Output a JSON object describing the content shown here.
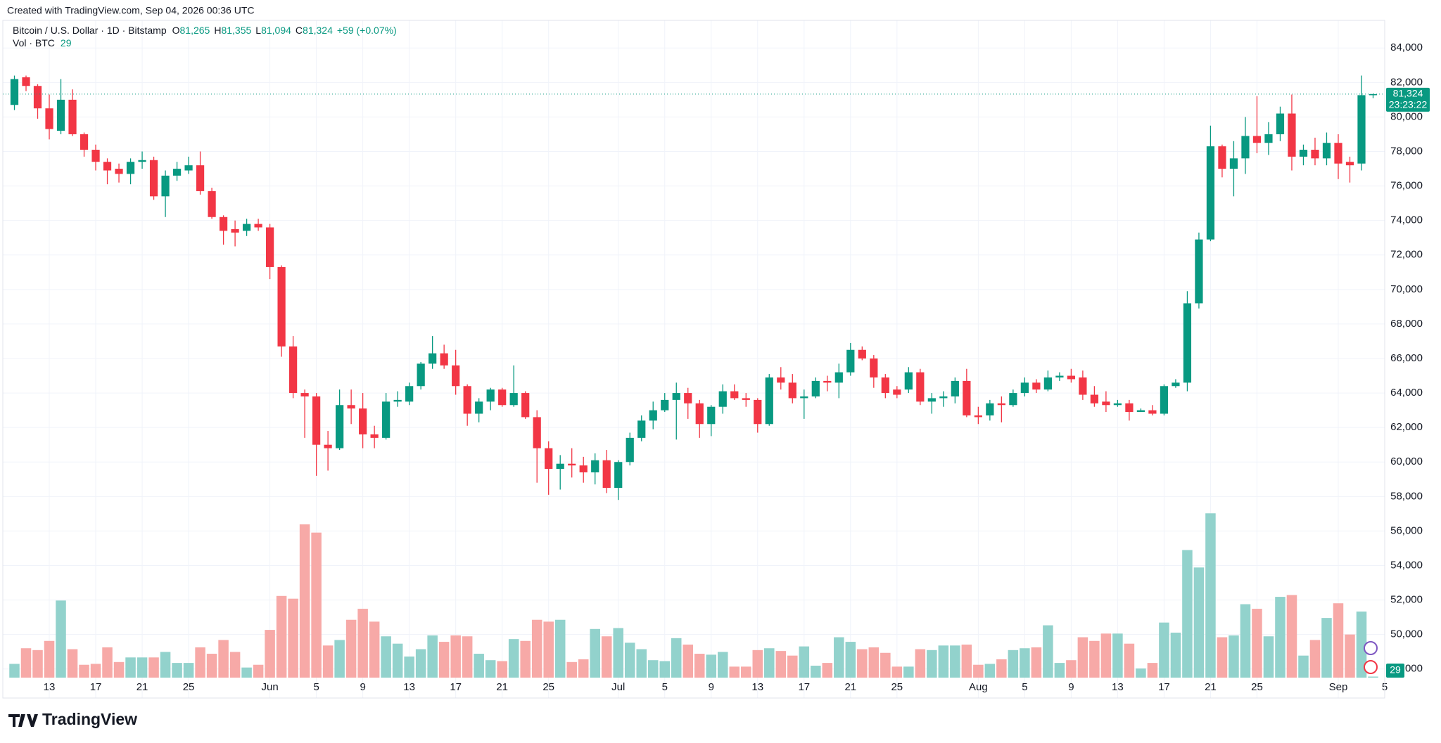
{
  "header": {
    "credit": "Created with TradingView.com, Sep 04, 2026 00:36 UTC"
  },
  "footer": {
    "brand": "TradingView"
  },
  "chart_data": {
    "type": "candlestick",
    "legend": {
      "title": "Bitcoin / U.S. Dollar · 1D · Bitstamp",
      "open_label": "O",
      "open": "81,265",
      "high_label": "H",
      "high": "81,355",
      "low_label": "L",
      "low": "81,094",
      "close_label": "C",
      "close": "81,324",
      "change": "+59 (+0.07%)",
      "volume_title": "Vol · BTC"
    },
    "last_price_label": "81,324",
    "countdown": "23:23:22",
    "up_color": "#089981",
    "down_color": "#f23645",
    "up_volume_color": "#92d2cc",
    "down_volume_color": "#f7a9a7",
    "grid": true,
    "x": [
      "2026-05-10",
      "2026-05-11",
      "2026-05-12",
      "2026-05-13",
      "2026-05-14",
      "2026-05-15",
      "2026-05-16",
      "2026-05-17",
      "2026-05-18",
      "2026-05-19",
      "2026-05-20",
      "2026-05-21",
      "2026-05-22",
      "2026-05-23",
      "2026-05-24",
      "2026-05-25",
      "2026-05-26",
      "2026-05-27",
      "2026-05-28",
      "2026-05-29",
      "2026-05-30",
      "2026-05-31",
      "2026-06-01",
      "2026-06-02",
      "2026-06-03",
      "2026-06-04",
      "2026-06-05",
      "2026-06-06",
      "2026-06-07",
      "2026-06-08",
      "2026-06-09",
      "2026-06-10",
      "2026-06-11",
      "2026-06-12",
      "2026-06-13",
      "2026-06-14",
      "2026-06-15",
      "2026-06-16",
      "2026-06-17",
      "2026-06-18",
      "2026-06-19",
      "2026-06-20",
      "2026-06-21",
      "2026-06-22",
      "2026-06-23",
      "2026-06-24",
      "2026-06-25",
      "2026-06-26",
      "2026-06-27",
      "2026-06-28",
      "2026-06-29",
      "2026-06-30",
      "2026-07-01",
      "2026-07-02",
      "2026-07-03",
      "2026-07-04",
      "2026-07-05",
      "2026-07-06",
      "2026-07-07",
      "2026-07-08",
      "2026-07-09",
      "2026-07-10",
      "2026-07-11",
      "2026-07-12",
      "2026-07-13",
      "2026-07-14",
      "2026-07-15",
      "2026-07-16",
      "2026-07-17",
      "2026-07-18",
      "2026-07-19",
      "2026-07-20",
      "2026-07-21",
      "2026-07-22",
      "2026-07-23",
      "2026-07-24",
      "2026-07-25",
      "2026-07-26",
      "2026-07-27",
      "2026-07-28",
      "2026-07-29",
      "2026-07-30",
      "2026-07-31",
      "2026-08-01",
      "2026-08-02",
      "2026-08-03",
      "2026-08-04",
      "2026-08-05",
      "2026-08-06",
      "2026-08-07",
      "2026-08-08",
      "2026-08-09",
      "2026-08-10",
      "2026-08-11",
      "2026-08-12",
      "2026-08-13",
      "2026-08-14",
      "2026-08-15",
      "2026-08-16",
      "2026-08-17",
      "2026-08-18",
      "2026-08-19",
      "2026-08-20",
      "2026-08-21",
      "2026-08-22",
      "2026-08-23",
      "2026-08-24",
      "2026-08-25",
      "2026-08-26",
      "2026-08-27",
      "2026-08-28",
      "2026-08-29",
      "2026-08-30",
      "2026-08-31",
      "2026-09-01",
      "2026-09-02",
      "2026-09-03",
      "2026-09-04"
    ],
    "open": [
      80700,
      82300,
      81800,
      80500,
      79200,
      81000,
      79000,
      78100,
      77400,
      77000,
      76700,
      77400,
      77500,
      75400,
      76600,
      76900,
      77200,
      75700,
      74200,
      73500,
      73400,
      73800,
      73600,
      71300,
      66700,
      64000,
      63800,
      61000,
      60800,
      63300,
      63100,
      61600,
      61400,
      63500,
      63500,
      64400,
      65700,
      66300,
      65600,
      64400,
      62800,
      63500,
      64200,
      63300,
      64000,
      62600,
      60800,
      59600,
      59900,
      59800,
      59400,
      60100,
      58500,
      60000,
      61400,
      62400,
      63000,
      63600,
      64000,
      63400,
      62200,
      63200,
      64100,
      63700,
      63600,
      62200,
      64900,
      64600,
      63700,
      63800,
      64700,
      64600,
      65200,
      66500,
      66000,
      64900,
      64200,
      64200,
      65200,
      63500,
      63700,
      63800,
      64700,
      62700,
      62700,
      63400,
      63300,
      64000,
      64600,
      64200,
      64900,
      65000,
      64900,
      63900,
      63500,
      63300,
      63400,
      62900,
      63000,
      62800,
      64400,
      64600,
      69200,
      72900,
      78300,
      77000,
      77600,
      78900,
      78500,
      79000,
      80200,
      77700,
      78100,
      77600,
      78500,
      77400,
      77300,
      81265
    ],
    "high": [
      82400,
      82400,
      81900,
      81300,
      82200,
      81600,
      79100,
      78400,
      77600,
      77300,
      77600,
      78000,
      77700,
      76900,
      77400,
      77700,
      78000,
      75900,
      74300,
      74000,
      74100,
      74100,
      73800,
      71400,
      67300,
      64200,
      64000,
      61800,
      64200,
      64200,
      64000,
      62100,
      64000,
      64100,
      64600,
      65800,
      67300,
      66800,
      66500,
      64500,
      63700,
      64300,
      64300,
      65600,
      64100,
      63000,
      61200,
      60400,
      60800,
      60300,
      60500,
      60700,
      60100,
      61700,
      62700,
      63500,
      64000,
      64600,
      64300,
      63600,
      63300,
      64500,
      64500,
      64000,
      63700,
      65100,
      65500,
      65100,
      64200,
      64900,
      65000,
      65700,
      66900,
      66700,
      66200,
      65100,
      64400,
      65500,
      65400,
      64000,
      64100,
      64900,
      65400,
      63200,
      63600,
      63800,
      64200,
      64900,
      64800,
      65300,
      65200,
      65400,
      65300,
      64400,
      64100,
      63600,
      63600,
      63100,
      63300,
      64500,
      64800,
      69900,
      73300,
      79500,
      78400,
      78600,
      80000,
      81200,
      79700,
      80600,
      81300,
      78400,
      78800,
      79100,
      79000,
      77700,
      82400,
      81355
    ],
    "low": [
      80400,
      81500,
      79900,
      78700,
      79000,
      78900,
      77700,
      76900,
      76100,
      76200,
      76100,
      77000,
      75200,
      74200,
      76300,
      76700,
      75500,
      74100,
      72600,
      72500,
      73100,
      73400,
      70600,
      66100,
      63700,
      61400,
      59200,
      59500,
      60700,
      62200,
      60800,
      60800,
      61300,
      63200,
      63300,
      64200,
      65400,
      65400,
      63900,
      62100,
      62300,
      63000,
      63200,
      63200,
      62500,
      58800,
      58100,
      58400,
      59100,
      58800,
      58700,
      58200,
      57800,
      59800,
      61200,
      61900,
      62900,
      61300,
      62500,
      61400,
      61500,
      62800,
      63600,
      63200,
      61700,
      62100,
      64200,
      63400,
      62500,
      63700,
      64100,
      63700,
      65000,
      65900,
      64300,
      63700,
      63700,
      64000,
      63300,
      62800,
      63200,
      63400,
      62600,
      62200,
      62400,
      62300,
      63200,
      63800,
      64000,
      64100,
      64700,
      64600,
      63600,
      63200,
      62900,
      63200,
      62400,
      62900,
      62700,
      62700,
      64300,
      64100,
      68900,
      72800,
      76500,
      75400,
      76700,
      77900,
      77800,
      78600,
      76900,
      77200,
      77200,
      77200,
      76400,
      76200,
      76900,
      81094
    ],
    "close": [
      82200,
      81800,
      80500,
      79300,
      81000,
      79000,
      78100,
      77400,
      76900,
      76700,
      77400,
      77500,
      75400,
      76600,
      77000,
      77200,
      75700,
      74200,
      73400,
      73300,
      73800,
      73600,
      71300,
      66700,
      64000,
      63800,
      61000,
      60800,
      63300,
      63100,
      61600,
      61400,
      63500,
      63600,
      64400,
      65700,
      66300,
      65600,
      64400,
      62800,
      63500,
      64200,
      63300,
      64000,
      62600,
      60800,
      59600,
      59900,
      59800,
      59400,
      60100,
      58500,
      60000,
      61400,
      62400,
      63000,
      63600,
      64000,
      63400,
      62200,
      63200,
      64100,
      63700,
      63600,
      62200,
      64900,
      64600,
      63700,
      63800,
      64700,
      64600,
      65200,
      66500,
      66000,
      64900,
      64000,
      63900,
      65200,
      63500,
      63700,
      63800,
      64700,
      62700,
      62600,
      63400,
      63300,
      64000,
      64600,
      64200,
      64900,
      65000,
      64800,
      63900,
      63400,
      63300,
      63400,
      62900,
      63000,
      62800,
      64400,
      64600,
      69200,
      72900,
      78300,
      77000,
      77600,
      78900,
      78500,
      79000,
      80200,
      77700,
      78100,
      77600,
      78500,
      77300,
      77200,
      81265,
      81324
    ],
    "volume": [
      375,
      800,
      750,
      1000,
      2100,
      775,
      350,
      375,
      825,
      425,
      550,
      550,
      550,
      700,
      400,
      400,
      825,
      650,
      1025,
      700,
      275,
      350,
      1300,
      2225,
      2150,
      4175,
      3950,
      875,
      1025,
      1575,
      1875,
      1525,
      1125,
      925,
      575,
      775,
      1150,
      975,
      1150,
      1125,
      650,
      475,
      450,
      1050,
      1000,
      1575,
      1525,
      1575,
      425,
      500,
      1325,
      1125,
      1350,
      950,
      775,
      475,
      450,
      1075,
      900,
      650,
      625,
      700,
      300,
      300,
      750,
      800,
      725,
      600,
      850,
      325,
      400,
      1100,
      975,
      775,
      825,
      675,
      300,
      300,
      775,
      750,
      875,
      875,
      900,
      350,
      375,
      500,
      750,
      800,
      825,
      1425,
      400,
      475,
      1100,
      1000,
      1200,
      1200,
      925,
      250,
      400,
      1500,
      1225,
      3475,
      3000,
      4475,
      1100,
      1150,
      2000,
      1875,
      1125,
      2200,
      2250,
      600,
      1025,
      1625,
      2025,
      1175,
      1800,
      29
    ],
    "xlim": [
      "2026-05-09",
      "2026-09-05"
    ],
    "xticks": [
      {
        "value": "2026-05-13",
        "label": "13"
      },
      {
        "value": "2026-05-17",
        "label": "17"
      },
      {
        "value": "2026-05-21",
        "label": "21"
      },
      {
        "value": "2026-05-25",
        "label": "25"
      },
      {
        "value": "2026-06-01",
        "label": "Jun"
      },
      {
        "value": "2026-06-05",
        "label": "5"
      },
      {
        "value": "2026-06-09",
        "label": "9"
      },
      {
        "value": "2026-06-13",
        "label": "13"
      },
      {
        "value": "2026-06-17",
        "label": "17"
      },
      {
        "value": "2026-06-21",
        "label": "21"
      },
      {
        "value": "2026-06-25",
        "label": "25"
      },
      {
        "value": "2026-07-01",
        "label": "Jul"
      },
      {
        "value": "2026-07-05",
        "label": "5"
      },
      {
        "value": "2026-07-09",
        "label": "9"
      },
      {
        "value": "2026-07-13",
        "label": "13"
      },
      {
        "value": "2026-07-17",
        "label": "17"
      },
      {
        "value": "2026-07-21",
        "label": "21"
      },
      {
        "value": "2026-07-25",
        "label": "25"
      },
      {
        "value": "2026-08-01",
        "label": "Aug"
      },
      {
        "value": "2026-08-05",
        "label": "5"
      },
      {
        "value": "2026-08-09",
        "label": "9"
      },
      {
        "value": "2026-08-13",
        "label": "13"
      },
      {
        "value": "2026-08-17",
        "label": "17"
      },
      {
        "value": "2026-08-21",
        "label": "21"
      },
      {
        "value": "2026-08-25",
        "label": "25"
      },
      {
        "value": "2026-09-01",
        "label": "Sep"
      },
      {
        "value": "2026-09-05",
        "label": "5"
      }
    ],
    "ylim": [
      47500,
      85600
    ],
    "yticks": [
      {
        "value": 48000,
        "label": "48,000"
      },
      {
        "value": 50000,
        "label": "50,000"
      },
      {
        "value": 52000,
        "label": "52,000"
      },
      {
        "value": 54000,
        "label": "54,000"
      },
      {
        "value": 56000,
        "label": "56,000"
      },
      {
        "value": 58000,
        "label": "58,000"
      },
      {
        "value": 60000,
        "label": "60,000"
      },
      {
        "value": 62000,
        "label": "62,000"
      },
      {
        "value": 64000,
        "label": "64,000"
      },
      {
        "value": 66000,
        "label": "66,000"
      },
      {
        "value": 68000,
        "label": "68,000"
      },
      {
        "value": 70000,
        "label": "70,000"
      },
      {
        "value": 72000,
        "label": "72,000"
      },
      {
        "value": 74000,
        "label": "74,000"
      },
      {
        "value": 76000,
        "label": "76,000"
      },
      {
        "value": 78000,
        "label": "78,000"
      },
      {
        "value": 80000,
        "label": "80,000"
      },
      {
        "value": 82000,
        "label": "82,000"
      },
      {
        "value": 84000,
        "label": "84,000"
      }
    ]
  }
}
